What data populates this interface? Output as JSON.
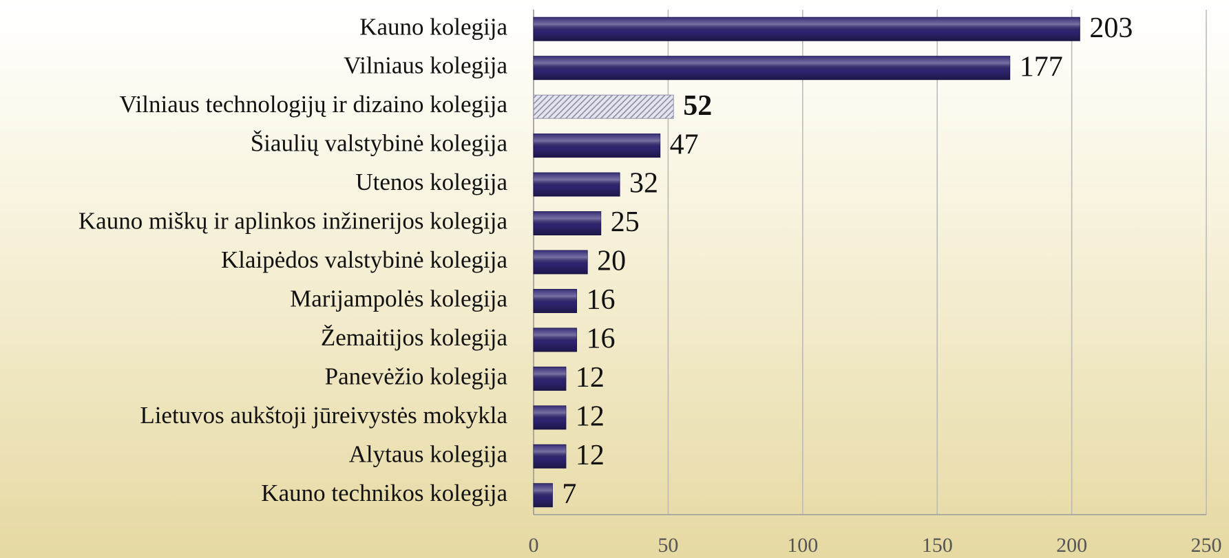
{
  "chart_data": {
    "type": "bar",
    "orientation": "horizontal",
    "categories": [
      "Kauno kolegija",
      "Vilniaus kolegija",
      "Vilniaus technologijų ir dizaino kolegija",
      "Šiaulių valstybinė kolegija",
      "Utenos kolegija",
      "Kauno miškų ir aplinkos inžinerijos kolegija",
      "Klaipėdos valstybinė kolegija",
      "Marijampolės kolegija",
      "Žemaitijos kolegija",
      "Panevėžio kolegija",
      "Lietuvos aukštoji jūreivystės mokykla",
      "Alytaus kolegija",
      "Kauno technikos kolegija"
    ],
    "values": [
      203,
      177,
      52,
      47,
      32,
      25,
      20,
      16,
      16,
      12,
      12,
      12,
      7
    ],
    "color": "#2e2470",
    "colors": [
      "#2e2470",
      "#2e2470",
      "#b4b4c8",
      "#2e2470",
      "#2e2470",
      "#2e2470",
      "#2e2470",
      "#2e2470",
      "#2e2470",
      "#2e2470",
      "#2e2470",
      "#2e2470",
      "#2e2470"
    ],
    "xlim": [
      0,
      250
    ],
    "xticks": [
      0,
      50,
      100,
      150,
      200,
      250
    ],
    "grid": true
  }
}
